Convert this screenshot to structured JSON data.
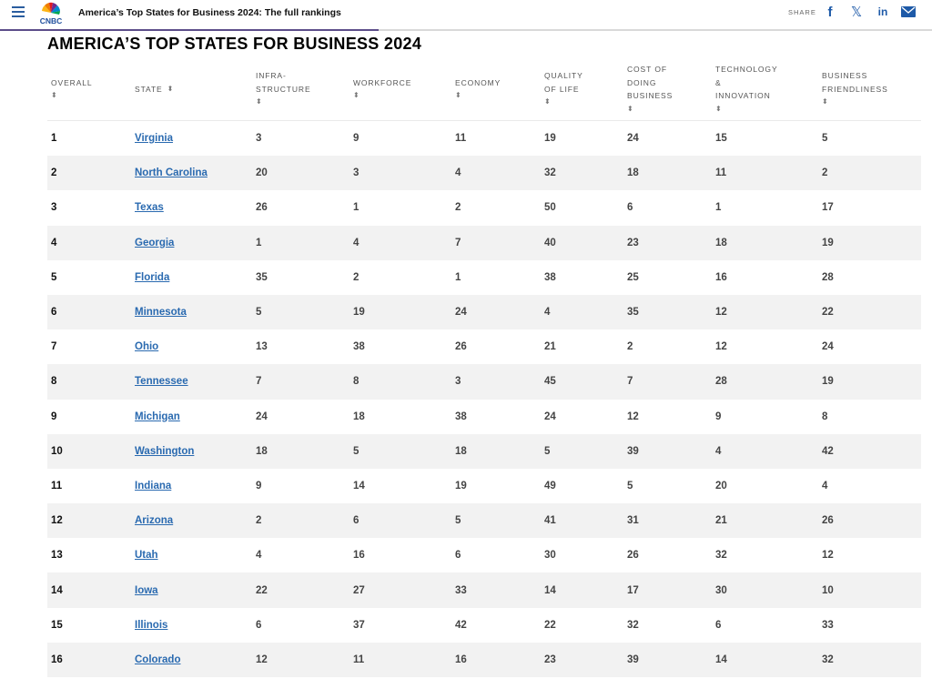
{
  "header": {
    "article_title": "America’s Top States for Business 2024: The full rankings",
    "logo_text": "CNBC",
    "share_label": "SHARE",
    "share_icons": [
      "facebook-icon",
      "x-icon",
      "linkedin-icon",
      "email-icon"
    ],
    "accent_color": "#5c4d8a",
    "share_color": "#1e5aa8"
  },
  "page": {
    "heading": "AMERICA’S TOP STATES FOR BUSINESS 2024"
  },
  "table": {
    "columns": [
      {
        "lines": [
          "OVERALL"
        ],
        "sort_icon": "⬍"
      },
      {
        "lines": [
          "STATE"
        ],
        "sort_icon": "⬍"
      },
      {
        "lines": [
          "INFRA-",
          "STRUCTURE"
        ],
        "sort_icon": "⬍"
      },
      {
        "lines": [
          "WORKFORCE"
        ],
        "sort_icon": "⬍"
      },
      {
        "lines": [
          "ECONOMY"
        ],
        "sort_icon": "⬍"
      },
      {
        "lines": [
          "QUALITY",
          "OF LIFE"
        ],
        "sort_icon": "⬍"
      },
      {
        "lines": [
          "COST OF",
          "DOING",
          "BUSINESS"
        ],
        "sort_icon": "⬍"
      },
      {
        "lines": [
          "TECHNOLOGY",
          "&",
          "INNOVATION"
        ],
        "sort_icon": "⬍"
      },
      {
        "lines": [
          "BUSINESS",
          "FRIENDLINESS"
        ],
        "sort_icon": "⬍"
      }
    ],
    "rows": [
      [
        "1",
        "Virginia",
        "3",
        "9",
        "11",
        "19",
        "24",
        "15",
        "5"
      ],
      [
        "2",
        "North Carolina",
        "20",
        "3",
        "4",
        "32",
        "18",
        "11",
        "2"
      ],
      [
        "3",
        "Texas",
        "26",
        "1",
        "2",
        "50",
        "6",
        "1",
        "17"
      ],
      [
        "4",
        "Georgia",
        "1",
        "4",
        "7",
        "40",
        "23",
        "18",
        "19"
      ],
      [
        "5",
        "Florida",
        "35",
        "2",
        "1",
        "38",
        "25",
        "16",
        "28"
      ],
      [
        "6",
        "Minnesota",
        "5",
        "19",
        "24",
        "4",
        "35",
        "12",
        "22"
      ],
      [
        "7",
        "Ohio",
        "13",
        "38",
        "26",
        "21",
        "2",
        "12",
        "24"
      ],
      [
        "8",
        "Tennessee",
        "7",
        "8",
        "3",
        "45",
        "7",
        "28",
        "19"
      ],
      [
        "9",
        "Michigan",
        "24",
        "18",
        "38",
        "24",
        "12",
        "9",
        "8"
      ],
      [
        "10",
        "Washington",
        "18",
        "5",
        "18",
        "5",
        "39",
        "4",
        "42"
      ],
      [
        "11",
        "Indiana",
        "9",
        "14",
        "19",
        "49",
        "5",
        "20",
        "4"
      ],
      [
        "12",
        "Arizona",
        "2",
        "6",
        "5",
        "41",
        "31",
        "21",
        "26"
      ],
      [
        "13",
        "Utah",
        "4",
        "16",
        "6",
        "30",
        "26",
        "32",
        "12"
      ],
      [
        "14",
        "Iowa",
        "22",
        "27",
        "33",
        "14",
        "17",
        "30",
        "10"
      ],
      [
        "15",
        "Illinois",
        "6",
        "37",
        "42",
        "22",
        "32",
        "6",
        "33"
      ],
      [
        "16",
        "Colorado",
        "12",
        "11",
        "16",
        "23",
        "39",
        "14",
        "32"
      ]
    ]
  }
}
